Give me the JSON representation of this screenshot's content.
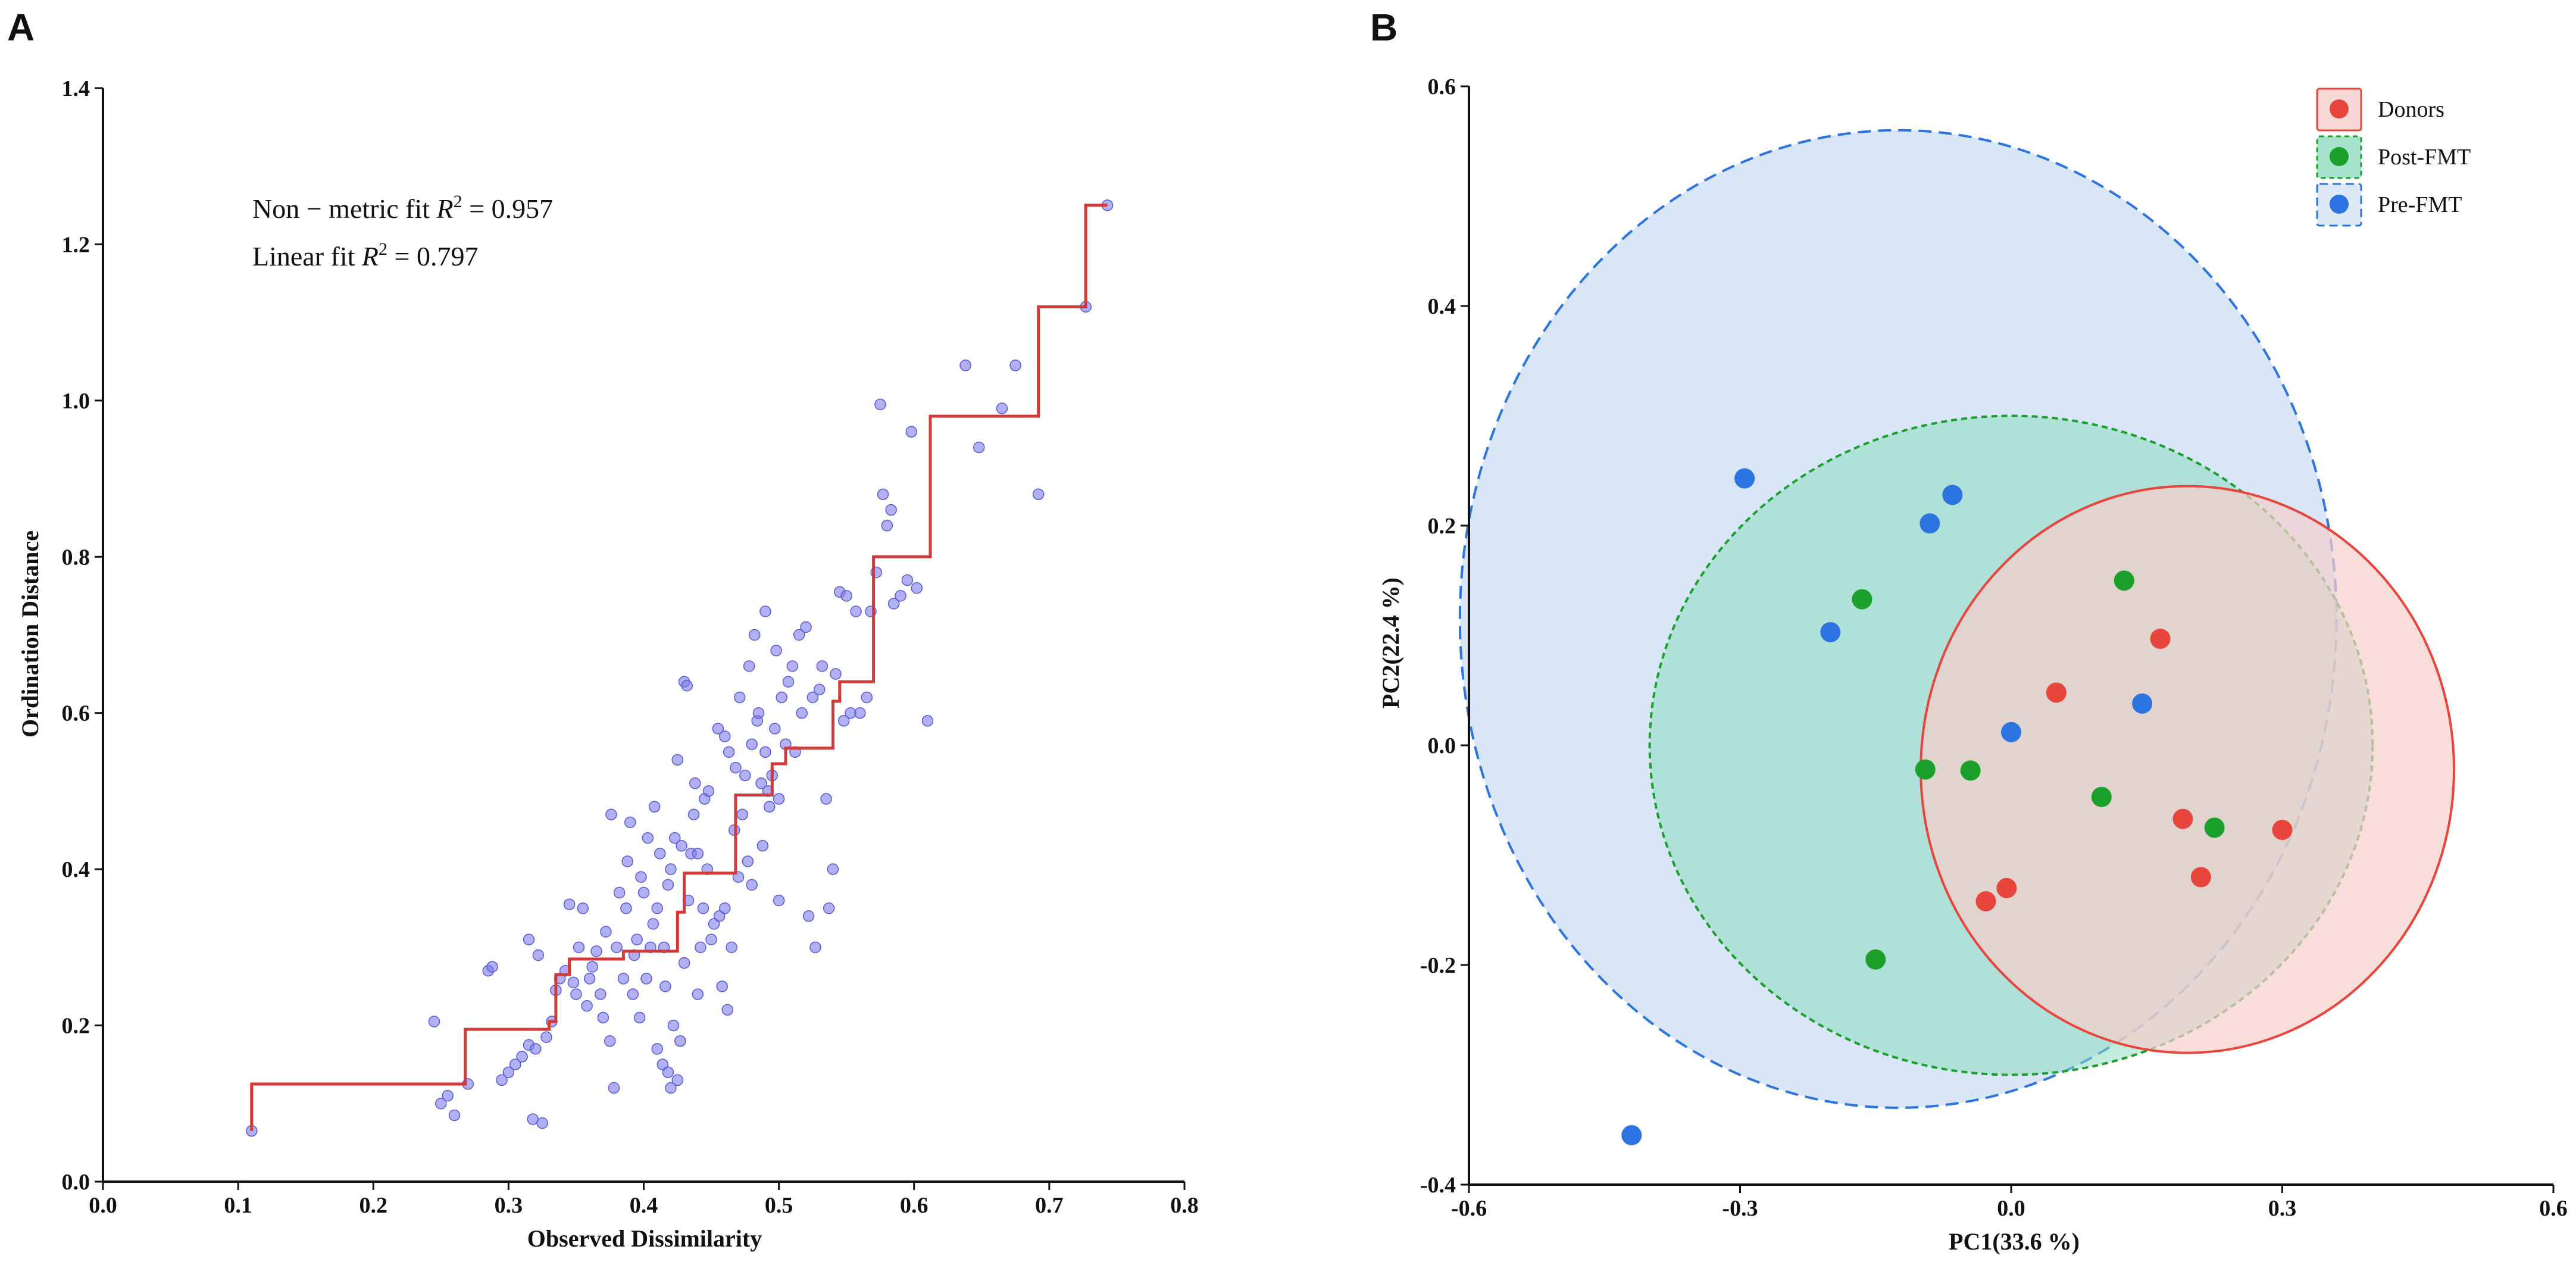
{
  "panel_labels": {
    "a": "A",
    "b": "B"
  },
  "colors": {
    "donors": "#e8453c",
    "post_fmt": "#1ba12b",
    "pre_fmt": "#2b74e2",
    "scatter_points": "#7b7bea",
    "step_line": "#d23a3a",
    "donors_fill": "#f6cfcc",
    "post_fill": "#8fdcbf",
    "pre_fill": "#d4e3f6"
  },
  "chart_data": [
    {
      "panel": "A",
      "type": "scatter",
      "title": "",
      "xlabel": "Observed Dissimilarity",
      "ylabel": "Ordination Distance",
      "xlim": [
        0.0,
        0.8
      ],
      "ylim": [
        0.0,
        1.4
      ],
      "xticks": [
        "0.0",
        "0.1",
        "0.2",
        "0.3",
        "0.4",
        "0.5",
        "0.6",
        "0.7",
        "0.8"
      ],
      "yticks": [
        "0.0",
        "0.2",
        "0.4",
        "0.6",
        "0.8",
        "1.0",
        "1.2",
        "1.4"
      ],
      "annotations": {
        "nonmetric_prefix": "Non − metric fit ",
        "nonmetric_value": " = 0.957",
        "linear_prefix": "Linear fit ",
        "linear_value": " = 0.797",
        "r": "R",
        "sq": "2"
      },
      "step_fit": [
        [
          0.11,
          0.065
        ],
        [
          0.11,
          0.125
        ],
        [
          0.268,
          0.125
        ],
        [
          0.268,
          0.195
        ],
        [
          0.33,
          0.195
        ],
        [
          0.33,
          0.205
        ],
        [
          0.335,
          0.205
        ],
        [
          0.335,
          0.265
        ],
        [
          0.345,
          0.265
        ],
        [
          0.345,
          0.285
        ],
        [
          0.385,
          0.285
        ],
        [
          0.385,
          0.295
        ],
        [
          0.425,
          0.295
        ],
        [
          0.425,
          0.345
        ],
        [
          0.43,
          0.345
        ],
        [
          0.43,
          0.395
        ],
        [
          0.468,
          0.395
        ],
        [
          0.468,
          0.495
        ],
        [
          0.495,
          0.495
        ],
        [
          0.495,
          0.535
        ],
        [
          0.505,
          0.535
        ],
        [
          0.505,
          0.555
        ],
        [
          0.54,
          0.555
        ],
        [
          0.54,
          0.615
        ],
        [
          0.545,
          0.615
        ],
        [
          0.545,
          0.64
        ],
        [
          0.57,
          0.64
        ],
        [
          0.57,
          0.8
        ],
        [
          0.612,
          0.8
        ],
        [
          0.612,
          0.98
        ],
        [
          0.692,
          0.98
        ],
        [
          0.692,
          1.12
        ],
        [
          0.727,
          1.12
        ],
        [
          0.727,
          1.25
        ],
        [
          0.743,
          1.25
        ]
      ],
      "points": [
        [
          0.11,
          0.065
        ],
        [
          0.245,
          0.205
        ],
        [
          0.25,
          0.1
        ],
        [
          0.255,
          0.11
        ],
        [
          0.26,
          0.085
        ],
        [
          0.27,
          0.125
        ],
        [
          0.285,
          0.27
        ],
        [
          0.288,
          0.275
        ],
        [
          0.295,
          0.13
        ],
        [
          0.3,
          0.14
        ],
        [
          0.305,
          0.15
        ],
        [
          0.31,
          0.16
        ],
        [
          0.315,
          0.175
        ],
        [
          0.315,
          0.31
        ],
        [
          0.318,
          0.08
        ],
        [
          0.32,
          0.17
        ],
        [
          0.322,
          0.29
        ],
        [
          0.325,
          0.075
        ],
        [
          0.328,
          0.185
        ],
        [
          0.332,
          0.205
        ],
        [
          0.335,
          0.245
        ],
        [
          0.338,
          0.26
        ],
        [
          0.342,
          0.27
        ],
        [
          0.345,
          0.355
        ],
        [
          0.348,
          0.255
        ],
        [
          0.35,
          0.24
        ],
        [
          0.352,
          0.3
        ],
        [
          0.355,
          0.35
        ],
        [
          0.358,
          0.225
        ],
        [
          0.36,
          0.26
        ],
        [
          0.362,
          0.275
        ],
        [
          0.365,
          0.295
        ],
        [
          0.368,
          0.24
        ],
        [
          0.37,
          0.21
        ],
        [
          0.372,
          0.32
        ],
        [
          0.375,
          0.18
        ],
        [
          0.376,
          0.47
        ],
        [
          0.378,
          0.12
        ],
        [
          0.38,
          0.3
        ],
        [
          0.382,
          0.37
        ],
        [
          0.385,
          0.26
        ],
        [
          0.387,
          0.35
        ],
        [
          0.388,
          0.41
        ],
        [
          0.39,
          0.46
        ],
        [
          0.392,
          0.24
        ],
        [
          0.393,
          0.29
        ],
        [
          0.395,
          0.31
        ],
        [
          0.397,
          0.21
        ],
        [
          0.398,
          0.39
        ],
        [
          0.4,
          0.37
        ],
        [
          0.402,
          0.26
        ],
        [
          0.403,
          0.44
        ],
        [
          0.405,
          0.3
        ],
        [
          0.407,
          0.33
        ],
        [
          0.408,
          0.48
        ],
        [
          0.41,
          0.35
        ],
        [
          0.41,
          0.17
        ],
        [
          0.412,
          0.42
        ],
        [
          0.414,
          0.15
        ],
        [
          0.415,
          0.3
        ],
        [
          0.416,
          0.25
        ],
        [
          0.418,
          0.38
        ],
        [
          0.418,
          0.14
        ],
        [
          0.42,
          0.4
        ],
        [
          0.42,
          0.12
        ],
        [
          0.422,
          0.2
        ],
        [
          0.423,
          0.44
        ],
        [
          0.425,
          0.13
        ],
        [
          0.425,
          0.54
        ],
        [
          0.427,
          0.18
        ],
        [
          0.428,
          0.43
        ],
        [
          0.43,
          0.28
        ],
        [
          0.43,
          0.64
        ],
        [
          0.432,
          0.635
        ],
        [
          0.433,
          0.36
        ],
        [
          0.435,
          0.42
        ],
        [
          0.437,
          0.47
        ],
        [
          0.438,
          0.51
        ],
        [
          0.44,
          0.24
        ],
        [
          0.44,
          0.42
        ],
        [
          0.442,
          0.3
        ],
        [
          0.444,
          0.35
        ],
        [
          0.445,
          0.49
        ],
        [
          0.447,
          0.4
        ],
        [
          0.448,
          0.5
        ],
        [
          0.45,
          0.31
        ],
        [
          0.452,
          0.33
        ],
        [
          0.455,
          0.58
        ],
        [
          0.456,
          0.34
        ],
        [
          0.458,
          0.25
        ],
        [
          0.46,
          0.35
        ],
        [
          0.46,
          0.57
        ],
        [
          0.462,
          0.22
        ],
        [
          0.463,
          0.55
        ],
        [
          0.465,
          0.3
        ],
        [
          0.467,
          0.45
        ],
        [
          0.468,
          0.53
        ],
        [
          0.47,
          0.39
        ],
        [
          0.471,
          0.62
        ],
        [
          0.473,
          0.47
        ],
        [
          0.475,
          0.52
        ],
        [
          0.477,
          0.41
        ],
        [
          0.478,
          0.66
        ],
        [
          0.48,
          0.56
        ],
        [
          0.48,
          0.38
        ],
        [
          0.482,
          0.7
        ],
        [
          0.484,
          0.59
        ],
        [
          0.485,
          0.6
        ],
        [
          0.487,
          0.51
        ],
        [
          0.488,
          0.43
        ],
        [
          0.49,
          0.55
        ],
        [
          0.49,
          0.73
        ],
        [
          0.492,
          0.5
        ],
        [
          0.493,
          0.48
        ],
        [
          0.495,
          0.52
        ],
        [
          0.497,
          0.58
        ],
        [
          0.498,
          0.68
        ],
        [
          0.5,
          0.36
        ],
        [
          0.5,
          0.49
        ],
        [
          0.502,
          0.62
        ],
        [
          0.505,
          0.56
        ],
        [
          0.507,
          0.64
        ],
        [
          0.51,
          0.66
        ],
        [
          0.512,
          0.55
        ],
        [
          0.515,
          0.7
        ],
        [
          0.517,
          0.6
        ],
        [
          0.52,
          0.71
        ],
        [
          0.522,
          0.34
        ],
        [
          0.525,
          0.62
        ],
        [
          0.527,
          0.3
        ],
        [
          0.53,
          0.63
        ],
        [
          0.532,
          0.66
        ],
        [
          0.535,
          0.49
        ],
        [
          0.537,
          0.35
        ],
        [
          0.54,
          0.4
        ],
        [
          0.542,
          0.65
        ],
        [
          0.545,
          0.755
        ],
        [
          0.548,
          0.59
        ],
        [
          0.55,
          0.75
        ],
        [
          0.553,
          0.6
        ],
        [
          0.557,
          0.73
        ],
        [
          0.56,
          0.6
        ],
        [
          0.565,
          0.62
        ],
        [
          0.568,
          0.73
        ],
        [
          0.572,
          0.78
        ],
        [
          0.575,
          0.995
        ],
        [
          0.577,
          0.88
        ],
        [
          0.58,
          0.84
        ],
        [
          0.583,
          0.86
        ],
        [
          0.585,
          0.74
        ],
        [
          0.59,
          0.75
        ],
        [
          0.595,
          0.77
        ],
        [
          0.598,
          0.96
        ],
        [
          0.602,
          0.76
        ],
        [
          0.61,
          0.59
        ],
        [
          0.638,
          1.045
        ],
        [
          0.648,
          0.94
        ],
        [
          0.665,
          0.99
        ],
        [
          0.675,
          1.045
        ],
        [
          0.692,
          0.88
        ],
        [
          0.727,
          1.12
        ],
        [
          0.743,
          1.25
        ]
      ]
    },
    {
      "panel": "B",
      "type": "scatter",
      "title": "",
      "xlabel": "PC1(33.6 %)",
      "ylabel": "PC2(22.4 %)",
      "xlim": [
        -0.6,
        0.6
      ],
      "ylim": [
        -0.4,
        0.6
      ],
      "xticks": [
        "-0.6",
        "-0.3",
        "0.0",
        "0.3",
        "0.6"
      ],
      "yticks": [
        "-0.4",
        "-0.2",
        "0.0",
        "0.2",
        "0.4",
        "0.6"
      ],
      "legend_position": "top-right",
      "series": [
        {
          "name": "Donors",
          "key": "donors",
          "points": [
            [
              0.05,
              0.048
            ],
            [
              0.165,
              0.097
            ],
            [
              0.19,
              -0.067
            ],
            [
              0.21,
              -0.12
            ],
            [
              0.3,
              -0.077
            ],
            [
              -0.005,
              -0.13
            ],
            [
              -0.028,
              -0.142
            ]
          ]
        },
        {
          "name": "Post-FMT",
          "key": "post_fmt",
          "points": [
            [
              0.125,
              0.15
            ],
            [
              -0.165,
              0.133
            ],
            [
              -0.095,
              -0.022
            ],
            [
              -0.045,
              -0.023
            ],
            [
              0.1,
              -0.047
            ],
            [
              0.225,
              -0.075
            ],
            [
              -0.15,
              -0.195
            ]
          ]
        },
        {
          "name": "Pre-FMT",
          "key": "pre_fmt",
          "points": [
            [
              -0.295,
              0.243
            ],
            [
              -0.065,
              0.228
            ],
            [
              -0.09,
              0.202
            ],
            [
              -0.2,
              0.103
            ],
            [
              0.0,
              0.012
            ],
            [
              0.145,
              0.038
            ],
            [
              -0.42,
              -0.355
            ]
          ]
        }
      ],
      "ellipses": [
        {
          "key": "pre_fmt",
          "cx": -0.125,
          "cy": 0.115,
          "rx": 0.485,
          "ry": 0.445,
          "style": "dashed"
        },
        {
          "key": "post_fmt",
          "cx": 0.0,
          "cy": 0.0,
          "rx": 0.4,
          "ry": 0.3,
          "style": "dotted"
        },
        {
          "key": "donors",
          "cx": 0.195,
          "cy": -0.022,
          "rx": 0.295,
          "ry": 0.258,
          "style": "solid"
        }
      ]
    }
  ]
}
